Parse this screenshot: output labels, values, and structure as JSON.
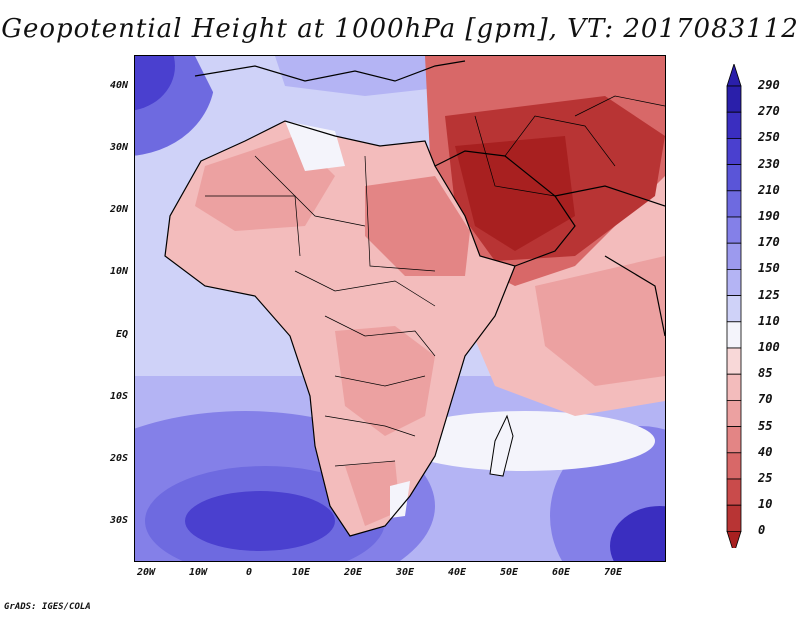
{
  "title": "Geopotential Height at 1000hPa [gpm], VT: 2017083112",
  "footer": "GrADS: IGES/COLA",
  "lat_labels": [
    "40N",
    "30N",
    "20N",
    "10N",
    "EQ",
    "10S",
    "20S",
    "30S"
  ],
  "lon_labels": [
    "20W",
    "10W",
    "0",
    "10E",
    "20E",
    "30E",
    "40E",
    "50E",
    "60E",
    "70E"
  ],
  "colorbar": {
    "levels": [
      "290",
      "270",
      "250",
      "230",
      "210",
      "190",
      "170",
      "150",
      "125",
      "110",
      "100",
      "85",
      "70",
      "55",
      "40",
      "25",
      "10",
      "0"
    ],
    "colors": [
      "#2a1faa",
      "#3a2ec0",
      "#4a40cf",
      "#5a55d8",
      "#6e6ae0",
      "#8480e8",
      "#9c9aee",
      "#b4b4f4",
      "#cfd2f8",
      "#f4f4fb",
      "#f8d8d8",
      "#f3bcbc",
      "#eca1a1",
      "#e38585",
      "#d86868",
      "#c94b4b",
      "#b83434",
      "#a82020"
    ]
  },
  "palette": {
    "ocean_deep": "#4a40cf",
    "ocean_mid": "#8480e8",
    "ocean_light": "#cfd2f8",
    "land_light": "#f3bcbc",
    "land_mid": "#e38585",
    "land_hot": "#b83434",
    "arabia": "#a82020"
  }
}
